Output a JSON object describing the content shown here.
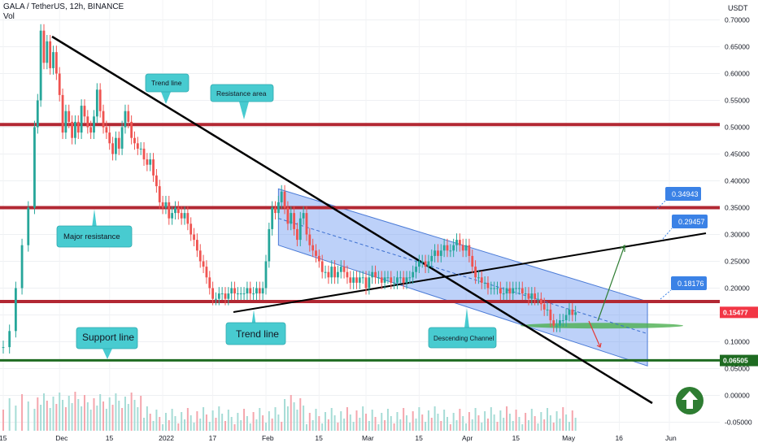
{
  "header": {
    "symbol_line": "GALA / TetherUS, 12h, BINANCE",
    "vol_label": "Vol",
    "unit": "USDT"
  },
  "chart_data": {
    "type": "candlestick",
    "price_ticks": [
      "0.70000",
      "0.65000",
      "0.60000",
      "0.55000",
      "0.50000",
      "0.45000",
      "0.40000",
      "0.35000",
      "0.30000",
      "0.25000",
      "0.20000",
      "0.15000",
      "0.10000",
      "0.05000",
      "0.00000",
      "-0.05000"
    ],
    "tick_values": [
      0.7,
      0.65,
      0.6,
      0.55,
      0.5,
      0.45,
      0.4,
      0.35,
      0.3,
      0.25,
      0.2,
      0.15,
      0.1,
      0.05,
      0.0,
      -0.05
    ],
    "x_ticks": [
      "15",
      "Dec",
      "15",
      "2022",
      "17",
      "Feb",
      "15",
      "Mar",
      "15",
      "Apr",
      "15",
      "May",
      "16",
      "Jun"
    ],
    "x_tick_index": [
      0,
      18,
      34,
      51,
      67,
      84,
      101,
      116,
      133,
      148,
      164,
      180,
      197,
      213
    ],
    "close_points": [
      [
        0,
        0.09
      ],
      [
        2,
        0.12
      ],
      [
        4,
        0.2
      ],
      [
        6,
        0.28
      ],
      [
        8,
        0.35
      ],
      [
        10,
        0.5
      ],
      [
        11,
        0.55
      ],
      [
        12,
        0.68
      ],
      [
        13,
        0.62
      ],
      [
        14,
        0.66
      ],
      [
        15,
        0.61
      ],
      [
        16,
        0.64
      ],
      [
        17,
        0.6
      ],
      [
        18,
        0.56
      ],
      [
        19,
        0.49
      ],
      [
        20,
        0.53
      ],
      [
        21,
        0.51
      ],
      [
        22,
        0.48
      ],
      [
        23,
        0.51
      ],
      [
        24,
        0.49
      ],
      [
        25,
        0.54
      ],
      [
        26,
        0.52
      ],
      [
        27,
        0.5
      ],
      [
        28,
        0.49
      ],
      [
        29,
        0.52
      ],
      [
        30,
        0.57
      ],
      [
        31,
        0.53
      ],
      [
        32,
        0.5
      ],
      [
        33,
        0.49
      ],
      [
        34,
        0.47
      ],
      [
        35,
        0.45
      ],
      [
        36,
        0.48
      ],
      [
        37,
        0.46
      ],
      [
        38,
        0.5
      ],
      [
        39,
        0.53
      ],
      [
        40,
        0.51
      ],
      [
        41,
        0.48
      ],
      [
        42,
        0.47
      ],
      [
        43,
        0.46
      ],
      [
        44,
        0.46
      ],
      [
        45,
        0.44
      ],
      [
        46,
        0.43
      ],
      [
        47,
        0.44
      ],
      [
        48,
        0.41
      ],
      [
        49,
        0.39
      ],
      [
        50,
        0.36
      ],
      [
        51,
        0.35
      ],
      [
        52,
        0.36
      ],
      [
        53,
        0.33
      ],
      [
        54,
        0.34
      ],
      [
        55,
        0.35
      ],
      [
        56,
        0.34
      ],
      [
        57,
        0.33
      ],
      [
        58,
        0.34
      ],
      [
        59,
        0.32
      ],
      [
        60,
        0.3
      ],
      [
        61,
        0.29
      ],
      [
        62,
        0.27
      ],
      [
        63,
        0.25
      ],
      [
        64,
        0.24
      ],
      [
        65,
        0.22
      ],
      [
        66,
        0.2
      ],
      [
        67,
        0.18
      ],
      [
        68,
        0.18
      ],
      [
        69,
        0.19
      ],
      [
        70,
        0.19
      ],
      [
        71,
        0.18
      ],
      [
        72,
        0.19
      ],
      [
        73,
        0.2
      ],
      [
        74,
        0.19
      ],
      [
        75,
        0.19
      ],
      [
        76,
        0.19
      ],
      [
        77,
        0.19
      ],
      [
        78,
        0.2
      ],
      [
        79,
        0.19
      ],
      [
        80,
        0.19
      ],
      [
        81,
        0.2
      ],
      [
        82,
        0.19
      ],
      [
        83,
        0.2
      ],
      [
        84,
        0.25
      ],
      [
        85,
        0.31
      ],
      [
        86,
        0.35
      ],
      [
        87,
        0.34
      ],
      [
        88,
        0.36
      ],
      [
        89,
        0.38
      ],
      [
        90,
        0.35
      ],
      [
        91,
        0.32
      ],
      [
        92,
        0.34
      ],
      [
        93,
        0.31
      ],
      [
        94,
        0.29
      ],
      [
        95,
        0.33
      ],
      [
        96,
        0.34
      ],
      [
        97,
        0.3
      ],
      [
        98,
        0.28
      ],
      [
        99,
        0.27
      ],
      [
        100,
        0.26
      ],
      [
        101,
        0.25
      ],
      [
        102,
        0.23
      ],
      [
        103,
        0.23
      ],
      [
        104,
        0.22
      ],
      [
        105,
        0.24
      ],
      [
        106,
        0.22
      ],
      [
        107,
        0.23
      ],
      [
        108,
        0.24
      ],
      [
        109,
        0.23
      ],
      [
        110,
        0.22
      ],
      [
        111,
        0.21
      ],
      [
        112,
        0.22
      ],
      [
        113,
        0.21
      ],
      [
        114,
        0.22
      ],
      [
        115,
        0.22
      ],
      [
        116,
        0.2
      ],
      [
        117,
        0.22
      ],
      [
        118,
        0.23
      ],
      [
        119,
        0.22
      ],
      [
        120,
        0.22
      ],
      [
        121,
        0.21
      ],
      [
        122,
        0.22
      ],
      [
        123,
        0.22
      ],
      [
        124,
        0.21
      ],
      [
        125,
        0.21
      ],
      [
        126,
        0.22
      ],
      [
        127,
        0.22
      ],
      [
        128,
        0.21
      ],
      [
        129,
        0.22
      ],
      [
        130,
        0.22
      ],
      [
        131,
        0.23
      ],
      [
        132,
        0.24
      ],
      [
        133,
        0.25
      ],
      [
        134,
        0.25
      ],
      [
        135,
        0.24
      ],
      [
        136,
        0.25
      ],
      [
        137,
        0.26
      ],
      [
        138,
        0.27
      ],
      [
        139,
        0.26
      ],
      [
        140,
        0.27
      ],
      [
        141,
        0.28
      ],
      [
        142,
        0.27
      ],
      [
        143,
        0.27
      ],
      [
        144,
        0.28
      ],
      [
        145,
        0.29
      ],
      [
        146,
        0.28
      ],
      [
        147,
        0.27
      ],
      [
        148,
        0.28
      ],
      [
        149,
        0.26
      ],
      [
        150,
        0.24
      ],
      [
        151,
        0.22
      ],
      [
        152,
        0.22
      ],
      [
        153,
        0.21
      ],
      [
        154,
        0.21
      ],
      [
        155,
        0.2
      ],
      [
        156,
        0.2
      ],
      [
        157,
        0.2
      ],
      [
        158,
        0.2
      ],
      [
        159,
        0.19
      ],
      [
        160,
        0.19
      ],
      [
        161,
        0.2
      ],
      [
        162,
        0.19
      ],
      [
        163,
        0.2
      ],
      [
        164,
        0.2
      ],
      [
        165,
        0.2
      ],
      [
        166,
        0.19
      ],
      [
        167,
        0.19
      ],
      [
        168,
        0.18
      ],
      [
        169,
        0.19
      ],
      [
        170,
        0.18
      ],
      [
        171,
        0.18
      ],
      [
        172,
        0.17
      ],
      [
        173,
        0.16
      ],
      [
        174,
        0.16
      ],
      [
        175,
        0.14
      ],
      [
        176,
        0.13
      ],
      [
        177,
        0.13
      ],
      [
        178,
        0.14
      ],
      [
        179,
        0.14
      ],
      [
        180,
        0.15
      ],
      [
        181,
        0.16
      ],
      [
        182,
        0.15
      ],
      [
        183,
        0.155
      ]
    ],
    "horizontal_levels": [
      {
        "name": "resistance-area",
        "value": 0.505,
        "color": "#b22833"
      },
      {
        "name": "major-resistance",
        "value": 0.35,
        "color": "#b22833"
      },
      {
        "name": "trend-resistance",
        "value": 0.175,
        "color": "#b22833"
      },
      {
        "name": "support-line",
        "value": 0.0654,
        "color": "#1e6b21"
      }
    ],
    "price_labels": [
      {
        "text": "0.15477",
        "value": 0.15477,
        "color": "#f23645"
      },
      {
        "text": "0.06505",
        "value": 0.06505,
        "color": "#1e6b21"
      }
    ],
    "annotations": [
      {
        "text": "Trend line",
        "kind": "teal"
      },
      {
        "text": "Resistance area",
        "kind": "teal"
      },
      {
        "text": "Major resistance",
        "kind": "teal"
      },
      {
        "text": "Support line",
        "kind": "teal"
      },
      {
        "text": "Trend line",
        "kind": "teal"
      },
      {
        "text": "Descending Channel",
        "kind": "teal"
      },
      {
        "text": "0.34943",
        "kind": "blue"
      },
      {
        "text": "0.29457",
        "kind": "blue"
      },
      {
        "text": "0.18176",
        "kind": "blue"
      }
    ],
    "grid": true
  }
}
